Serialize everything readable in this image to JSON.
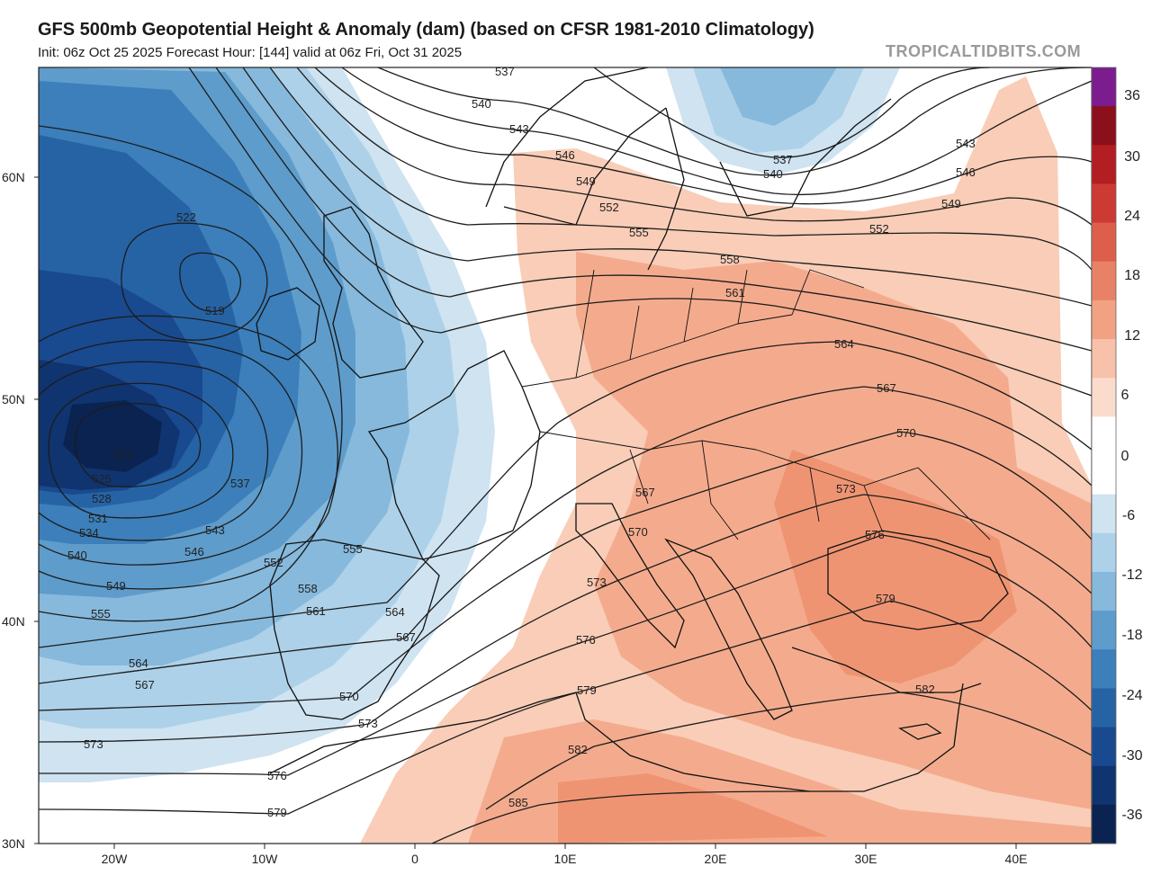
{
  "header": {
    "title": "GFS 500mb Geopotential Height & Anomaly (dam) (based on CFSR 1981-2010 Climatology)",
    "subtitle": "Init: 06z Oct 25 2025   Forecast Hour: [144]   valid at 06z Fri, Oct 31 2025",
    "watermark": "TROPICALTIDBITS.COM"
  },
  "map": {
    "region": "Europe / North Atlantic",
    "lat_labels": [
      "60N",
      "50N",
      "40N",
      "30N"
    ],
    "lon_labels": [
      "20W",
      "10W",
      "0",
      "10E",
      "20E",
      "30E",
      "40E"
    ]
  },
  "colorbar": {
    "ticks": [
      "36",
      "30",
      "24",
      "18",
      "12",
      "6",
      "0",
      "-6",
      "-12",
      "-18",
      "-24",
      "-30",
      "-36"
    ],
    "colors": [
      "#7b1c8f",
      "#8c0f1c",
      "#b31e22",
      "#cc3a34",
      "#dd5f4b",
      "#e98166",
      "#f2a283",
      "#f8c2aa",
      "#fbdccc",
      "#ffffff",
      "#ffffff",
      "#cfe3f1",
      "#add1e8",
      "#86b9dc",
      "#5e9ccb",
      "#3c7fba",
      "#2663a5",
      "#19498f",
      "#10346f",
      "#0a2350"
    ]
  },
  "contour_labels": [
    {
      "text": "537"
    },
    {
      "text": "540"
    },
    {
      "text": "543"
    },
    {
      "text": "546"
    },
    {
      "text": "549"
    },
    {
      "text": "552"
    },
    {
      "text": "555"
    },
    {
      "text": "558"
    },
    {
      "text": "561"
    },
    {
      "text": "537"
    },
    {
      "text": "540"
    },
    {
      "text": "543"
    },
    {
      "text": "546"
    },
    {
      "text": "549"
    },
    {
      "text": "552"
    },
    {
      "text": "564"
    },
    {
      "text": "567"
    },
    {
      "text": "570"
    },
    {
      "text": "573"
    },
    {
      "text": "576"
    },
    {
      "text": "579"
    },
    {
      "text": "582"
    },
    {
      "text": "567"
    },
    {
      "text": "570"
    },
    {
      "text": "573"
    },
    {
      "text": "576"
    },
    {
      "text": "579"
    },
    {
      "text": "582"
    },
    {
      "text": "585"
    },
    {
      "text": "522"
    },
    {
      "text": "519"
    },
    {
      "text": "522"
    },
    {
      "text": "525"
    },
    {
      "text": "528"
    },
    {
      "text": "531"
    },
    {
      "text": "534"
    },
    {
      "text": "540"
    },
    {
      "text": "549"
    },
    {
      "text": "555"
    },
    {
      "text": "564"
    },
    {
      "text": "567"
    },
    {
      "text": "573"
    },
    {
      "text": "537"
    },
    {
      "text": "543"
    },
    {
      "text": "546"
    },
    {
      "text": "552"
    },
    {
      "text": "555"
    },
    {
      "text": "558"
    },
    {
      "text": "561"
    },
    {
      "text": "564"
    },
    {
      "text": "567"
    },
    {
      "text": "570"
    },
    {
      "text": "573"
    },
    {
      "text": "576"
    },
    {
      "text": "579"
    }
  ]
}
